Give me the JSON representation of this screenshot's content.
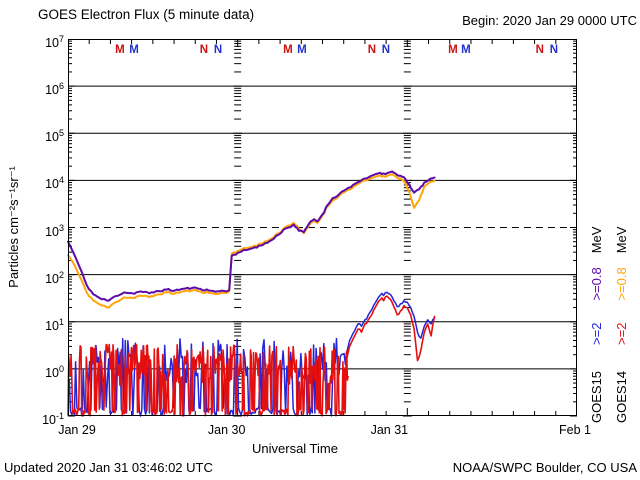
{
  "header": {
    "title": "GOES Electron Flux (5 minute data)",
    "begin_label": "Begin: 2020 Jan 29 0000 UTC"
  },
  "footer": {
    "updated": "Updated 2020 Jan 31 03:46:02 UTC",
    "source": "NOAA/SWPC Boulder, CO USA"
  },
  "colors": {
    "goes15_08": "#5c0ba8",
    "goes14_08": "#ffa50a",
    "goes15_2": "#2424d8",
    "goes14_2": "#e41010",
    "marker_red": "#cc1111",
    "marker_blue": "#2233cc",
    "axis": "#000000"
  },
  "legend": {
    "columns": [
      {
        "satellite": {
          "text": "GOES15",
          "color_key": "axis"
        },
        "e2": {
          "text": ">=2",
          "color_key": "goes15_2"
        },
        "e08": {
          "text": ">=0.8",
          "color_key": "goes15_08"
        },
        "mev": {
          "text": "MeV",
          "color_key": "axis"
        }
      },
      {
        "satellite": {
          "text": "GOES14",
          "color_key": "axis"
        },
        "e2": {
          "text": ">=2",
          "color_key": "goes14_2"
        },
        "e08": {
          "text": ">=0.8",
          "color_key": "goes14_08"
        },
        "mev": {
          "text": "MeV",
          "color_key": "axis"
        }
      }
    ]
  },
  "chart_data": {
    "type": "line",
    "title": "GOES Electron Flux (5 minute data)",
    "xlabel": "Universal Time",
    "ylabel": "Particles  cm⁻²s⁻¹sr⁻¹",
    "x_range_days": 3,
    "minor_tick_hours": 3,
    "x_ticks": [
      {
        "t": 0,
        "label": "Jan 29"
      },
      {
        "t": 1,
        "label": "Jan 30"
      },
      {
        "t": 2,
        "label": "Jan 31"
      },
      {
        "t": 3,
        "label": "Feb 1"
      }
    ],
    "y_exponents": [
      7,
      6,
      5,
      4,
      3,
      2,
      1,
      0,
      -1
    ],
    "threshold_exponent": 3,
    "day_boundary_lines": [
      1,
      2
    ],
    "markers": [
      {
        "label": "M",
        "color_key": "marker_red",
        "t": [
          0.306,
          1.296,
          2.269
        ]
      },
      {
        "label": "M",
        "color_key": "marker_blue",
        "t": [
          0.389,
          1.379,
          2.345
        ]
      },
      {
        "label": "N",
        "color_key": "marker_red",
        "t": [
          0.801,
          1.791,
          2.781
        ]
      },
      {
        "label": "N",
        "color_key": "marker_blue",
        "t": [
          0.884,
          1.874,
          2.864
        ]
      }
    ],
    "series": [
      {
        "name": "GOES14 >=0.8 MeV",
        "color_key": "goes14_08",
        "width": 2,
        "jitter_log": 0.022,
        "points": [
          [
            0,
            260
          ],
          [
            0.03,
            180
          ],
          [
            0.07,
            90
          ],
          [
            0.11,
            42
          ],
          [
            0.15,
            28
          ],
          [
            0.2,
            22
          ],
          [
            0.24,
            20
          ],
          [
            0.28,
            26
          ],
          [
            0.33,
            33
          ],
          [
            0.38,
            32
          ],
          [
            0.43,
            36
          ],
          [
            0.48,
            33
          ],
          [
            0.53,
            38
          ],
          [
            0.58,
            42
          ],
          [
            0.63,
            40
          ],
          [
            0.68,
            44
          ],
          [
            0.73,
            46
          ],
          [
            0.78,
            44
          ],
          [
            0.83,
            41
          ],
          [
            0.88,
            39
          ],
          [
            0.92,
            41
          ],
          [
            0.95,
            44
          ],
          [
            0.965,
            280
          ],
          [
            1,
            320
          ],
          [
            1.05,
            360
          ],
          [
            1.1,
            410
          ],
          [
            1.15,
            470
          ],
          [
            1.2,
            580
          ],
          [
            1.24,
            750
          ],
          [
            1.27,
            950
          ],
          [
            1.3,
            1100
          ],
          [
            1.33,
            1250
          ],
          [
            1.36,
            950
          ],
          [
            1.39,
            750
          ],
          [
            1.42,
            1100
          ],
          [
            1.45,
            1400
          ],
          [
            1.47,
            1250
          ],
          [
            1.5,
            1800
          ],
          [
            1.53,
            2800
          ],
          [
            1.56,
            3800
          ],
          [
            1.6,
            4800
          ],
          [
            1.64,
            6000
          ],
          [
            1.68,
            7200
          ],
          [
            1.72,
            8800
          ],
          [
            1.76,
            10000
          ],
          [
            1.8,
            11500
          ],
          [
            1.84,
            12800
          ],
          [
            1.87,
            11800
          ],
          [
            1.9,
            13200
          ],
          [
            1.93,
            12200
          ],
          [
            1.96,
            11000
          ],
          [
            1.99,
            8500
          ],
          [
            2.02,
            4500
          ],
          [
            2.04,
            2600
          ],
          [
            2.07,
            3800
          ],
          [
            2.1,
            7500
          ],
          [
            2.13,
            9000
          ],
          [
            2.16,
            9800
          ]
        ]
      },
      {
        "name": "GOES15 >=0.8 MeV",
        "color_key": "goes15_08",
        "width": 2,
        "jitter_log": 0.022,
        "points": [
          [
            0,
            500
          ],
          [
            0.03,
            300
          ],
          [
            0.07,
            140
          ],
          [
            0.11,
            60
          ],
          [
            0.15,
            38
          ],
          [
            0.2,
            30
          ],
          [
            0.24,
            28
          ],
          [
            0.28,
            35
          ],
          [
            0.33,
            42
          ],
          [
            0.38,
            40
          ],
          [
            0.43,
            44
          ],
          [
            0.48,
            40
          ],
          [
            0.53,
            45
          ],
          [
            0.58,
            48
          ],
          [
            0.63,
            46
          ],
          [
            0.68,
            50
          ],
          [
            0.73,
            52
          ],
          [
            0.78,
            50
          ],
          [
            0.83,
            46
          ],
          [
            0.88,
            44
          ],
          [
            0.92,
            45
          ],
          [
            0.95,
            47
          ],
          [
            0.965,
            250
          ],
          [
            1,
            290
          ],
          [
            1.05,
            330
          ],
          [
            1.1,
            380
          ],
          [
            1.15,
            430
          ],
          [
            1.2,
            540
          ],
          [
            1.24,
            700
          ],
          [
            1.27,
            900
          ],
          [
            1.3,
            1000
          ],
          [
            1.33,
            1150
          ],
          [
            1.36,
            850
          ],
          [
            1.39,
            800
          ],
          [
            1.42,
            1200
          ],
          [
            1.45,
            1500
          ],
          [
            1.47,
            1350
          ],
          [
            1.5,
            1900
          ],
          [
            1.53,
            3000
          ],
          [
            1.56,
            4200
          ],
          [
            1.6,
            5200
          ],
          [
            1.64,
            6500
          ],
          [
            1.68,
            8000
          ],
          [
            1.72,
            9500
          ],
          [
            1.76,
            11000
          ],
          [
            1.8,
            13000
          ],
          [
            1.84,
            14500
          ],
          [
            1.87,
            13500
          ],
          [
            1.9,
            15000
          ],
          [
            1.93,
            14000
          ],
          [
            1.96,
            12500
          ],
          [
            1.99,
            10500
          ],
          [
            2.02,
            7000
          ],
          [
            2.04,
            5500
          ],
          [
            2.07,
            6500
          ],
          [
            2.1,
            9000
          ],
          [
            2.13,
            10500
          ],
          [
            2.16,
            11500
          ]
        ]
      },
      {
        "name": "GOES15 >=2 MeV",
        "color_key": "goes15_2",
        "width": 1.5,
        "jitter_log": 0.04,
        "noise": {
          "t_start": 0,
          "t_end": 1.645,
          "step_days": 0.0075,
          "log_high": [
            -0.3,
            0.65
          ],
          "log_low": [
            -1,
            -0.8
          ],
          "stay_high": 0.6,
          "stay_low": 0.62,
          "seed": 3
        },
        "points": [
          [
            1.64,
            2
          ],
          [
            1.66,
            4
          ],
          [
            1.69,
            6.5
          ],
          [
            1.71,
            9
          ],
          [
            1.73,
            8
          ],
          [
            1.75,
            11
          ],
          [
            1.77,
            14
          ],
          [
            1.79,
            18
          ],
          [
            1.81,
            25
          ],
          [
            1.83,
            33
          ],
          [
            1.85,
            40
          ],
          [
            1.86,
            36
          ],
          [
            1.88,
            42
          ],
          [
            1.9,
            38
          ],
          [
            1.92,
            28
          ],
          [
            1.94,
            21
          ],
          [
            1.96,
            24
          ],
          [
            1.98,
            28
          ],
          [
            2,
            26
          ],
          [
            2.02,
            20
          ],
          [
            2.04,
            13
          ],
          [
            2.06,
            6
          ],
          [
            2.08,
            4.5
          ],
          [
            2.1,
            8
          ],
          [
            2.12,
            11
          ],
          [
            2.14,
            9
          ],
          [
            2.16,
            12
          ]
        ]
      },
      {
        "name": "GOES14 >=2 MeV",
        "color_key": "goes14_2",
        "width": 1.6,
        "jitter_log": 0.04,
        "noise": {
          "t_start": 0,
          "t_end": 1.655,
          "step_days": 0.0045,
          "log_high": [
            -0.35,
            0.52
          ],
          "log_low": [
            -1,
            -0.85
          ],
          "stay_high": 0.75,
          "stay_low": 0.55,
          "seed": 7
        },
        "points": [
          [
            1.64,
            1.5
          ],
          [
            1.66,
            3
          ],
          [
            1.69,
            5
          ],
          [
            1.71,
            7
          ],
          [
            1.73,
            6
          ],
          [
            1.75,
            9
          ],
          [
            1.77,
            11
          ],
          [
            1.79,
            14
          ],
          [
            1.81,
            20
          ],
          [
            1.83,
            27
          ],
          [
            1.85,
            32
          ],
          [
            1.86,
            28
          ],
          [
            1.88,
            35
          ],
          [
            1.9,
            30
          ],
          [
            1.92,
            21
          ],
          [
            1.94,
            14
          ],
          [
            1.96,
            17
          ],
          [
            1.98,
            22
          ],
          [
            2,
            20
          ],
          [
            2.02,
            14
          ],
          [
            2.04,
            7
          ],
          [
            2.06,
            1.5
          ],
          [
            2.08,
            2.5
          ],
          [
            2.1,
            6
          ],
          [
            2.12,
            9
          ],
          [
            2.14,
            5
          ],
          [
            2.16,
            13
          ]
        ]
      }
    ]
  }
}
